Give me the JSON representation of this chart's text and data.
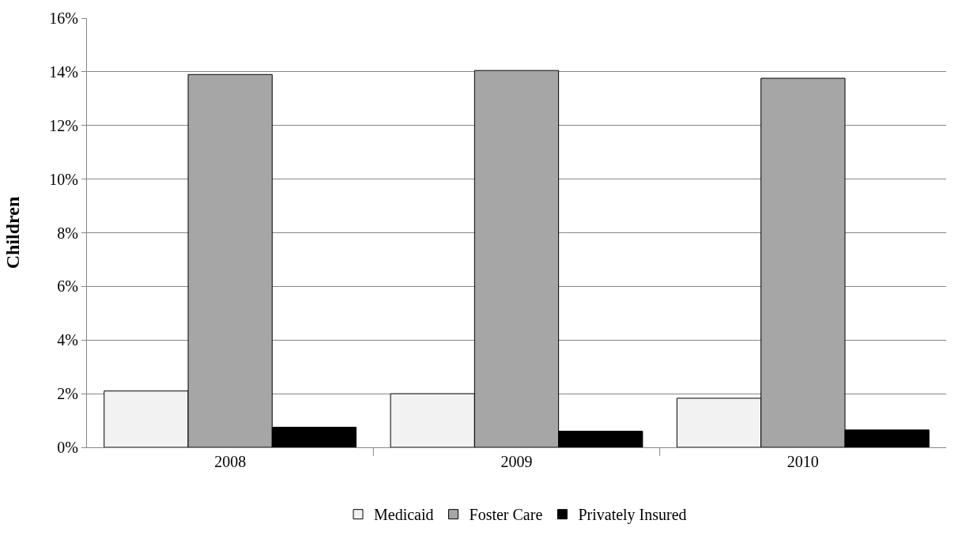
{
  "chart_data": {
    "type": "bar",
    "ylabel": "Children",
    "categories": [
      "2008",
      "2009",
      "2010"
    ],
    "series": [
      {
        "name": "Medicaid",
        "color": "#f2f2f2",
        "values": [
          2.1,
          2.0,
          1.83
        ]
      },
      {
        "name": "Foster Care",
        "color": "#a6a6a6",
        "values": [
          13.9,
          14.05,
          13.76
        ]
      },
      {
        "name": "Privately Insured",
        "color": "#000000",
        "values": [
          0.75,
          0.6,
          0.65
        ]
      }
    ],
    "ylim": [
      0,
      16
    ],
    "yticks": [
      {
        "value": 0,
        "label": "0%"
      },
      {
        "value": 2,
        "label": "2%"
      },
      {
        "value": 4,
        "label": "4%"
      },
      {
        "value": 6,
        "label": "6%"
      },
      {
        "value": 8,
        "label": "8%"
      },
      {
        "value": 10,
        "label": "10%"
      },
      {
        "value": 12,
        "label": "12%"
      },
      {
        "value": 14,
        "label": "14%"
      },
      {
        "value": 16,
        "label": "16%"
      }
    ],
    "grid": "y",
    "legend": "bottom"
  }
}
